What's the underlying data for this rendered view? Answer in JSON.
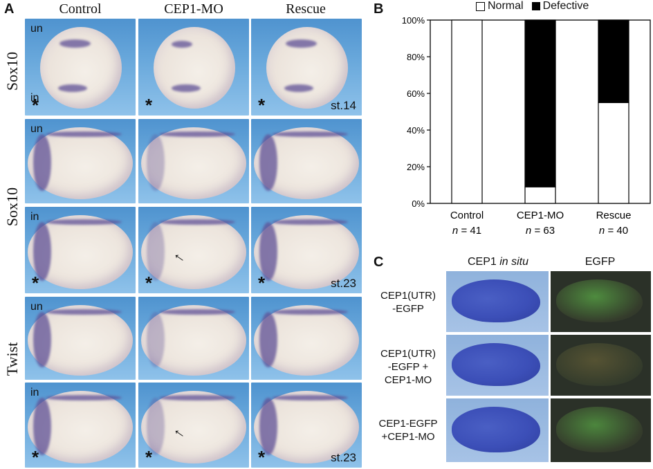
{
  "panel_a": {
    "letter": "A",
    "columns": [
      "Control",
      "CEP1-MO",
      "Rescue"
    ],
    "row_labels": [
      "Sox10",
      "Sox10",
      "Twist"
    ],
    "side_labels": [
      "un",
      "in"
    ],
    "asterisk": "*",
    "stages": [
      "st.14",
      "st.23",
      "st.23"
    ]
  },
  "panel_b": {
    "letter": "B",
    "legend": [
      "Normal",
      "Defective"
    ],
    "n_labels": [
      "n = 41",
      "n = 63",
      "n = 40"
    ],
    "n_prefix": "n",
    "n_values": [
      "= 41",
      "= 63",
      "= 40"
    ]
  },
  "panel_c": {
    "letter": "C",
    "col_titles": {
      "insitu_pre": "CEP1 ",
      "insitu_em": "in situ",
      "egfp": "EGFP"
    },
    "rows": [
      [
        "CEP1(UTR)",
        "-EGFP"
      ],
      [
        "CEP1(UTR)",
        "-EGFP +",
        "CEP1-MO"
      ],
      [
        "CEP1-EGFP",
        "+CEP1-MO"
      ]
    ]
  },
  "chart_data": {
    "type": "bar",
    "stacked": true,
    "categories": [
      "Control",
      "CEP1-MO",
      "Rescue"
    ],
    "series": [
      {
        "name": "Normal",
        "values": [
          100,
          9,
          55
        ],
        "color": "#ffffff"
      },
      {
        "name": "Defective",
        "values": [
          0,
          91,
          45
        ],
        "color": "#000000"
      }
    ],
    "yticks": [
      "0%",
      "20%",
      "40%",
      "60%",
      "80%",
      "100%"
    ],
    "ylim": [
      0,
      100
    ],
    "legend_position": "top"
  }
}
